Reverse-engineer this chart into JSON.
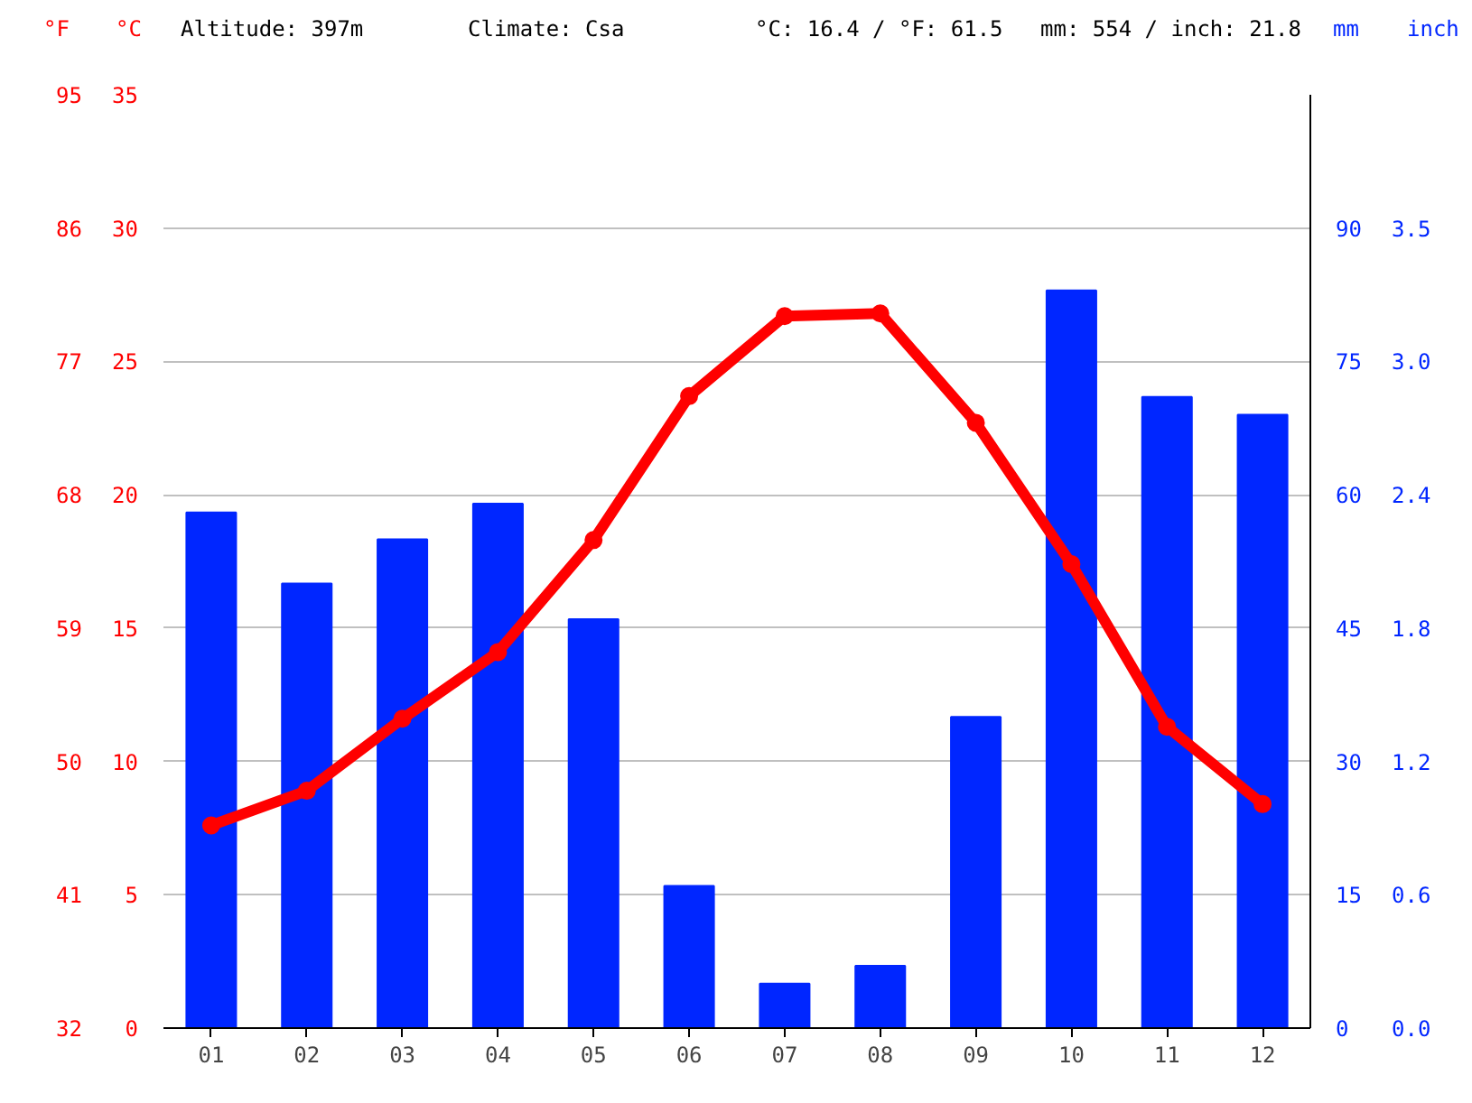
{
  "chart_data": {
    "type": "bar",
    "categories": [
      "01",
      "02",
      "03",
      "04",
      "05",
      "06",
      "07",
      "08",
      "09",
      "10",
      "11",
      "12"
    ],
    "ylabel": "°C",
    "ylim": [
      0,
      35
    ],
    "yticks": [
      0,
      5,
      10,
      15,
      20,
      25,
      30,
      35
    ],
    "y2label": "mm",
    "y2lim": [
      0,
      105
    ],
    "y2ticks": [
      0,
      15,
      30,
      45,
      60,
      75,
      90
    ],
    "y3label": "°F",
    "y3lim": [
      32,
      95
    ],
    "y3ticks": [
      32,
      41,
      50,
      59,
      68,
      77,
      86,
      95
    ],
    "series": [
      {
        "axis": "y2",
        "color": "#0026ff",
        "values": [
          58,
          50,
          55,
          59,
          46,
          16,
          5,
          7,
          35,
          83,
          71,
          69
        ]
      },
      {
        "type": "line",
        "axis": "y",
        "color": "#ff0000",
        "values": [
          7.6,
          8.9,
          11.6,
          14.1,
          18.3,
          23.7,
          26.7,
          26.8,
          22.7,
          17.4,
          11.3,
          8.4
        ]
      }
    ],
    "marker": "circle",
    "grid": "y",
    "annotations": [
      "Altitude: 397m",
      "Climate: Csa",
      "°C: 16.4 / °F: 61.5",
      "mm: 554 / inch: 21.8",
      "inch",
      "0.0",
      "0.6",
      "1.2",
      "1.8",
      "2.4",
      "3.0",
      "3.5"
    ]
  }
}
